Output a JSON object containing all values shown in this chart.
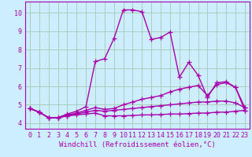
{
  "background_color": "#cceeff",
  "grid_color": "#aaccbb",
  "line_color": "#aa00aa",
  "marker": "+",
  "markersize": 4,
  "linewidth": 1.0,
  "xlabel": "Windchill (Refroidissement éolien,°C)",
  "xlabel_fontsize": 6.5,
  "tick_fontsize": 6,
  "xlim": [
    -0.5,
    23.5
  ],
  "ylim": [
    3.7,
    10.6
  ],
  "yticks": [
    4,
    5,
    6,
    7,
    8,
    9,
    10
  ],
  "xticks": [
    0,
    1,
    2,
    3,
    4,
    5,
    6,
    7,
    8,
    9,
    10,
    11,
    12,
    13,
    14,
    15,
    16,
    17,
    18,
    19,
    20,
    21,
    22,
    23
  ],
  "series": [
    [
      4.8,
      4.6,
      4.3,
      4.3,
      4.4,
      4.45,
      4.5,
      4.55,
      4.4,
      4.4,
      4.4,
      4.42,
      4.45,
      4.45,
      4.47,
      4.5,
      4.5,
      4.52,
      4.55,
      4.55,
      4.6,
      4.6,
      4.65,
      4.7
    ],
    [
      4.8,
      4.6,
      4.3,
      4.3,
      4.4,
      4.5,
      4.6,
      4.7,
      4.65,
      4.7,
      4.75,
      4.8,
      4.85,
      4.9,
      4.95,
      5.0,
      5.05,
      5.1,
      5.15,
      5.15,
      5.2,
      5.2,
      5.1,
      4.85
    ],
    [
      4.8,
      4.6,
      4.3,
      4.3,
      4.45,
      4.55,
      4.7,
      4.85,
      4.75,
      4.8,
      5.0,
      5.15,
      5.3,
      5.4,
      5.5,
      5.7,
      5.85,
      5.95,
      6.05,
      5.5,
      6.1,
      6.2,
      5.95,
      4.85
    ],
    [
      4.8,
      4.6,
      4.3,
      4.3,
      4.5,
      4.65,
      4.9,
      7.35,
      7.5,
      8.6,
      10.15,
      10.15,
      10.05,
      8.55,
      8.65,
      8.95,
      6.5,
      7.3,
      6.6,
      5.4,
      6.2,
      6.25,
      5.95,
      4.7
    ]
  ]
}
